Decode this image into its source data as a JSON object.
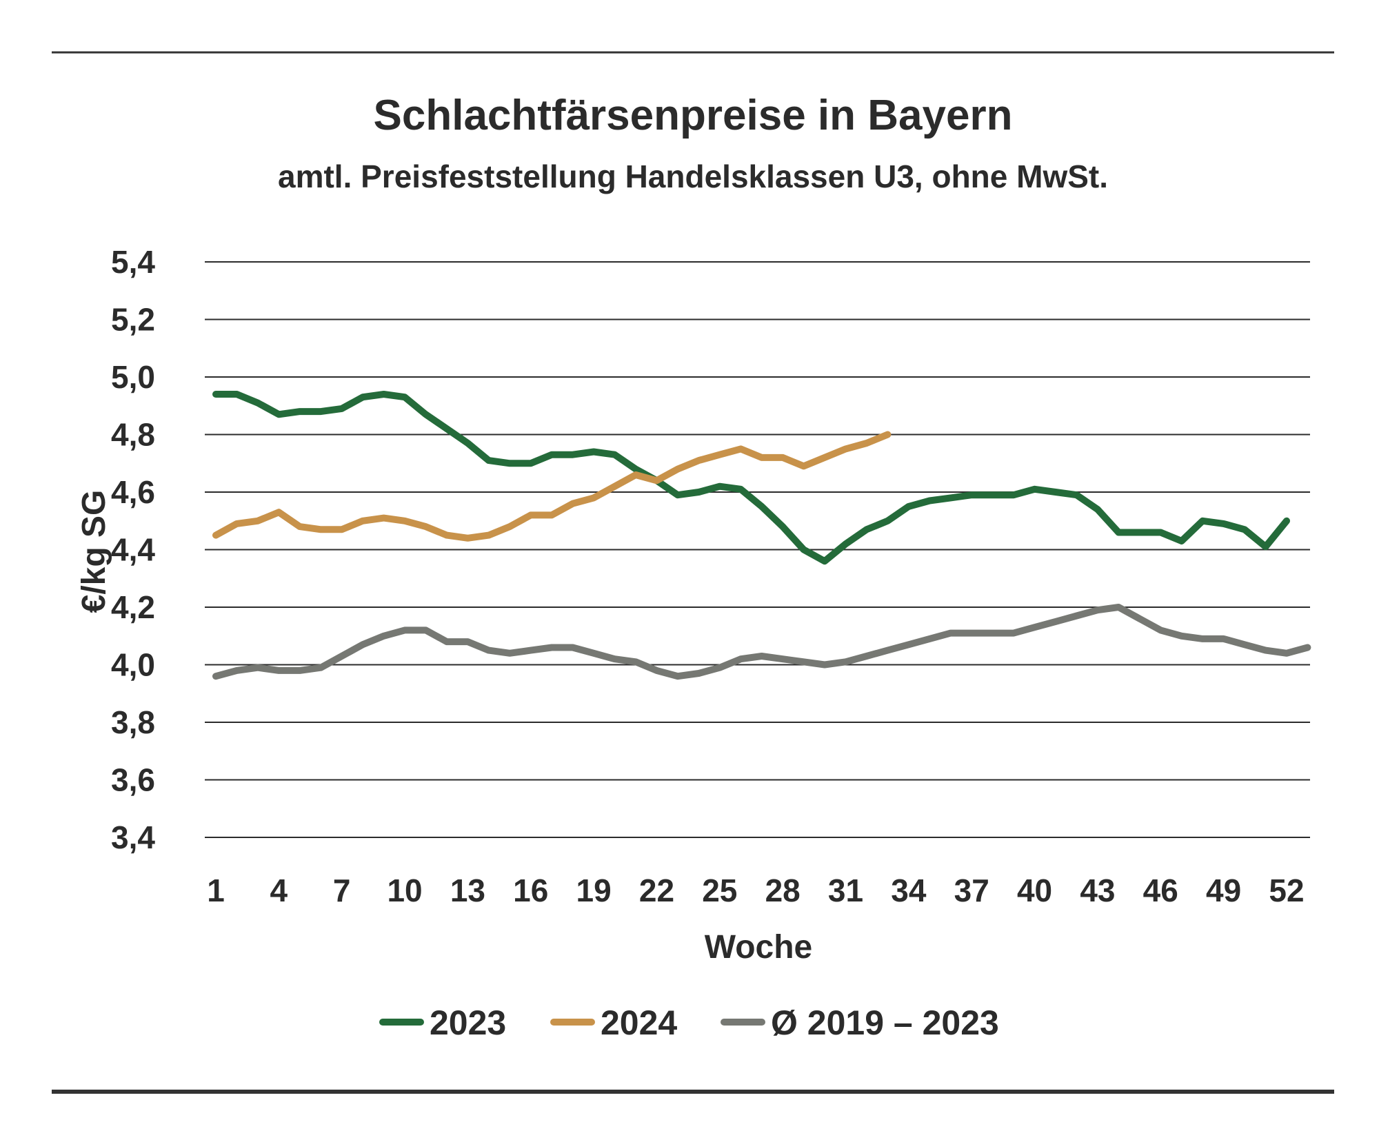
{
  "chart_data": {
    "type": "line",
    "title": "Schlachtfärsenpreise in Bayern",
    "subtitle": "amtl. Preisfeststellung Handelsklassen U3, ohne MwSt.",
    "xlabel": "Woche",
    "ylabel": "€/kg SG",
    "ylim": [
      3.4,
      5.4
    ],
    "xlim": [
      1,
      53
    ],
    "yticks": [
      "3,4",
      "3,6",
      "3,8",
      "4,0",
      "4,2",
      "4,4",
      "4,6",
      "4,8",
      "5,0",
      "5,2",
      "5,4"
    ],
    "xticks": [
      "1",
      "4",
      "7",
      "10",
      "13",
      "16",
      "19",
      "22",
      "25",
      "28",
      "31",
      "34",
      "37",
      "40",
      "43",
      "46",
      "49",
      "52"
    ],
    "grid": true,
    "legend_position": "bottom",
    "x": [
      1,
      2,
      3,
      4,
      5,
      6,
      7,
      8,
      9,
      10,
      11,
      12,
      13,
      14,
      15,
      16,
      17,
      18,
      19,
      20,
      21,
      22,
      23,
      24,
      25,
      26,
      27,
      28,
      29,
      30,
      31,
      32,
      33,
      34,
      35,
      36,
      37,
      38,
      39,
      40,
      41,
      42,
      43,
      44,
      45,
      46,
      47,
      48,
      49,
      50,
      51,
      52,
      53
    ],
    "series": [
      {
        "name": "2023",
        "color": "#246b3a",
        "values": [
          4.94,
          4.94,
          4.91,
          4.87,
          4.88,
          4.88,
          4.89,
          4.93,
          4.94,
          4.93,
          4.87,
          4.82,
          4.77,
          4.71,
          4.7,
          4.7,
          4.73,
          4.73,
          4.74,
          4.73,
          4.68,
          4.64,
          4.59,
          4.6,
          4.62,
          4.61,
          4.55,
          4.48,
          4.4,
          4.36,
          4.42,
          4.47,
          4.5,
          4.55,
          4.57,
          4.58,
          4.59,
          4.59,
          4.59,
          4.61,
          4.6,
          4.59,
          4.54,
          4.46,
          4.46,
          4.46,
          4.43,
          4.5,
          4.49,
          4.47,
          4.41,
          4.5,
          null
        ]
      },
      {
        "name": "2024",
        "color": "#c8924a",
        "values": [
          4.45,
          4.49,
          4.5,
          4.53,
          4.48,
          4.47,
          4.47,
          4.5,
          4.51,
          4.5,
          4.48,
          4.45,
          4.44,
          4.45,
          4.48,
          4.52,
          4.52,
          4.56,
          4.58,
          4.62,
          4.66,
          4.64,
          4.68,
          4.71,
          4.73,
          4.75,
          4.72,
          4.72,
          4.69,
          4.72,
          4.75,
          4.77,
          4.8,
          null,
          null,
          null,
          null,
          null,
          null,
          null,
          null,
          null,
          null,
          null,
          null,
          null,
          null,
          null,
          null,
          null,
          null,
          null,
          null
        ]
      },
      {
        "name": "Ø 2019 – 2023",
        "color": "#767873",
        "values": [
          3.96,
          3.98,
          3.99,
          3.98,
          3.98,
          3.99,
          4.03,
          4.07,
          4.1,
          4.12,
          4.12,
          4.08,
          4.08,
          4.05,
          4.04,
          4.05,
          4.06,
          4.06,
          4.04,
          4.02,
          4.01,
          3.98,
          3.96,
          3.97,
          3.99,
          4.02,
          4.03,
          4.02,
          4.01,
          4.0,
          4.01,
          4.03,
          4.05,
          4.07,
          4.09,
          4.11,
          4.11,
          4.11,
          4.11,
          4.13,
          4.15,
          4.17,
          4.19,
          4.2,
          4.16,
          4.12,
          4.1,
          4.09,
          4.09,
          4.07,
          4.05,
          4.04,
          4.06
        ]
      }
    ]
  }
}
